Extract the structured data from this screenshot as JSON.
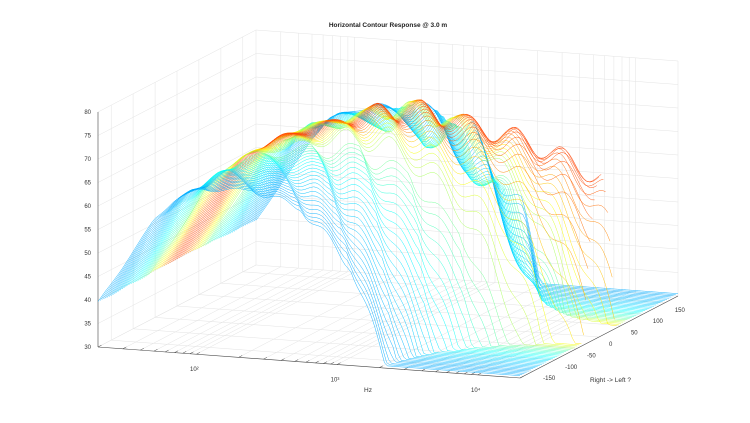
{
  "chart_data": {
    "type": "waterfall-3d",
    "title": "Horizontal Contour Response @ 3.0 m",
    "xlabel": "Hz",
    "ylabel": "Right -> Left ?",
    "x_scale": "log",
    "xlim": [
      20,
      20000
    ],
    "x_ticks": [
      100,
      1000,
      10000
    ],
    "x_tick_labels": [
      "10²",
      "10³",
      "10⁴"
    ],
    "ylim": [
      -180,
      180
    ],
    "y_ticks": [
      -150,
      -100,
      -50,
      0,
      50,
      100,
      150
    ],
    "y_tick_labels": [
      "-150",
      "-100",
      "-50",
      "0",
      "50",
      "100",
      "150"
    ],
    "zlim": [
      30,
      80
    ],
    "z_ticks": [
      30,
      35,
      40,
      45,
      50,
      55,
      60,
      65,
      70,
      75,
      80
    ],
    "z_tick_labels": [
      "30",
      "35",
      "40",
      "45",
      "50",
      "55",
      "60",
      "65",
      "70",
      "75",
      "80"
    ],
    "grid": true,
    "colormap": "jet",
    "angles": {
      "start": -180,
      "end": 180,
      "step": 5
    },
    "on_axis_response": [
      {
        "hz": 20,
        "db": 40
      },
      {
        "hz": 30,
        "db": 48
      },
      {
        "hz": 50,
        "db": 59
      },
      {
        "hz": 70,
        "db": 64
      },
      {
        "hz": 100,
        "db": 67
      },
      {
        "hz": 200,
        "db": 70
      },
      {
        "hz": 500,
        "db": 74
      },
      {
        "hz": 1000,
        "db": 75
      },
      {
        "hz": 2000,
        "db": 73
      },
      {
        "hz": 5000,
        "db": 71
      },
      {
        "hz": 10000,
        "db": 68
      },
      {
        "hz": 20000,
        "db": 64
      }
    ]
  }
}
